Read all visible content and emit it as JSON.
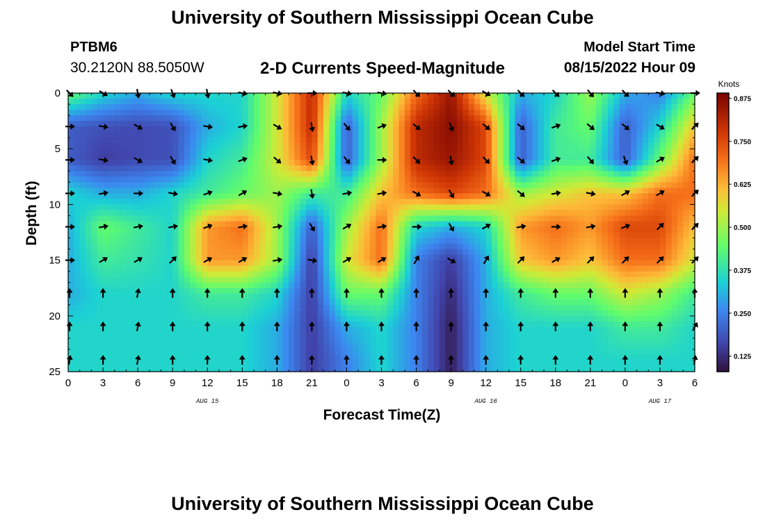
{
  "header": {
    "title": "University of Southern Mississippi Ocean Cube",
    "station": "PTBM6",
    "coords": "30.2120N  88.5050W",
    "subtitle": "2-D Currents Speed-Magnitude",
    "model_start_label": "Model Start Time",
    "model_start_value": "08/15/2022 Hour 09"
  },
  "footer": {
    "title": "University of Southern Mississippi Ocean Cube"
  },
  "chart_data": {
    "type": "heatmap",
    "title": "2-D Currents Speed-Magnitude",
    "xlabel": "Forecast Time(Z)",
    "ylabel": "Depth (ft)",
    "x_tick_labels": [
      "0",
      "3",
      "6",
      "9",
      "12",
      "15",
      "18",
      "21",
      "0",
      "3",
      "6",
      "9",
      "12",
      "15",
      "18",
      "21",
      "0",
      "3",
      "6"
    ],
    "x_hours": [
      0,
      3,
      6,
      9,
      12,
      15,
      18,
      21,
      24,
      27,
      30,
      33,
      36,
      39,
      42,
      45,
      48,
      51,
      54
    ],
    "date_labels": [
      {
        "label": "AUG 15",
        "hour": 12
      },
      {
        "label": "AUG 16",
        "hour": 36
      },
      {
        "label": "AUG 17",
        "hour": 51
      }
    ],
    "y_ticks": [
      0,
      5,
      10,
      15,
      20,
      25
    ],
    "ylim": [
      25,
      0
    ],
    "xlim": [
      0,
      54
    ],
    "colorbar": {
      "unit": "Knots",
      "range": [
        0.08,
        0.89
      ],
      "tick_values": [
        0.125,
        0.25,
        0.375,
        0.5,
        0.625,
        0.75,
        0.875
      ],
      "tick_labels": [
        "0.125",
        "0.250",
        "0.375",
        "0.500",
        "0.625",
        "0.750",
        "0.875"
      ],
      "colormap": "turbo"
    },
    "depths_ft": [
      0,
      3,
      6,
      9,
      12,
      15,
      18,
      21,
      24
    ],
    "speed_knots": [
      [
        0.45,
        0.35,
        0.3,
        0.35,
        0.35,
        0.35,
        0.55,
        0.8,
        0.35,
        0.45,
        0.7,
        0.85,
        0.55,
        0.3,
        0.35,
        0.5,
        0.3,
        0.25,
        0.45
      ],
      [
        0.2,
        0.18,
        0.17,
        0.18,
        0.3,
        0.35,
        0.55,
        0.8,
        0.2,
        0.5,
        0.8,
        0.87,
        0.75,
        0.2,
        0.4,
        0.45,
        0.2,
        0.35,
        0.6
      ],
      [
        0.2,
        0.15,
        0.17,
        0.18,
        0.35,
        0.4,
        0.55,
        0.75,
        0.2,
        0.5,
        0.8,
        0.85,
        0.75,
        0.2,
        0.4,
        0.4,
        0.2,
        0.45,
        0.7
      ],
      [
        0.35,
        0.3,
        0.3,
        0.35,
        0.4,
        0.45,
        0.5,
        0.4,
        0.4,
        0.6,
        0.7,
        0.75,
        0.7,
        0.5,
        0.55,
        0.6,
        0.6,
        0.7,
        0.7
      ],
      [
        0.3,
        0.45,
        0.4,
        0.35,
        0.65,
        0.7,
        0.5,
        0.2,
        0.5,
        0.7,
        0.35,
        0.3,
        0.35,
        0.65,
        0.7,
        0.65,
        0.75,
        0.75,
        0.6
      ],
      [
        0.3,
        0.4,
        0.38,
        0.35,
        0.65,
        0.65,
        0.5,
        0.15,
        0.55,
        0.7,
        0.25,
        0.15,
        0.3,
        0.6,
        0.65,
        0.6,
        0.7,
        0.7,
        0.55
      ],
      [
        0.3,
        0.35,
        0.35,
        0.35,
        0.4,
        0.4,
        0.35,
        0.15,
        0.45,
        0.45,
        0.25,
        0.12,
        0.3,
        0.4,
        0.45,
        0.45,
        0.55,
        0.5,
        0.4
      ],
      [
        0.35,
        0.35,
        0.35,
        0.35,
        0.35,
        0.35,
        0.3,
        0.15,
        0.3,
        0.35,
        0.25,
        0.1,
        0.3,
        0.35,
        0.35,
        0.35,
        0.4,
        0.4,
        0.35
      ],
      [
        0.35,
        0.35,
        0.35,
        0.35,
        0.35,
        0.35,
        0.3,
        0.15,
        0.25,
        0.35,
        0.25,
        0.1,
        0.3,
        0.35,
        0.35,
        0.35,
        0.35,
        0.35,
        0.35
      ]
    ],
    "arrow_direction_deg": [
      [
        135,
        120,
        170,
        160,
        170,
        100,
        100,
        90,
        100,
        100,
        135,
        135,
        120,
        135,
        135,
        140,
        135,
        100,
        90
      ],
      [
        90,
        100,
        120,
        150,
        100,
        80,
        120,
        170,
        140,
        70,
        130,
        160,
        130,
        130,
        70,
        130,
        130,
        120,
        45
      ],
      [
        90,
        100,
        120,
        150,
        100,
        70,
        130,
        170,
        140,
        90,
        135,
        170,
        135,
        130,
        70,
        140,
        160,
        60,
        45
      ],
      [
        90,
        80,
        90,
        100,
        70,
        60,
        100,
        170,
        80,
        80,
        120,
        150,
        120,
        130,
        80,
        100,
        60,
        60,
        45
      ],
      [
        90,
        80,
        80,
        80,
        70,
        80,
        80,
        150,
        60,
        80,
        90,
        150,
        60,
        80,
        90,
        80,
        70,
        45,
        45
      ],
      [
        90,
        60,
        60,
        45,
        60,
        60,
        80,
        100,
        60,
        60,
        30,
        120,
        30,
        45,
        60,
        45,
        45,
        45,
        45
      ],
      [
        0,
        0,
        10,
        0,
        0,
        0,
        0,
        0,
        0,
        0,
        0,
        0,
        0,
        0,
        0,
        0,
        0,
        0,
        0
      ],
      [
        0,
        0,
        10,
        0,
        0,
        0,
        0,
        0,
        0,
        0,
        0,
        0,
        0,
        0,
        0,
        0,
        0,
        0,
        30
      ],
      [
        10,
        0,
        10,
        0,
        0,
        0,
        0,
        0,
        0,
        0,
        0,
        0,
        0,
        0,
        0,
        0,
        0,
        0,
        10
      ]
    ]
  }
}
